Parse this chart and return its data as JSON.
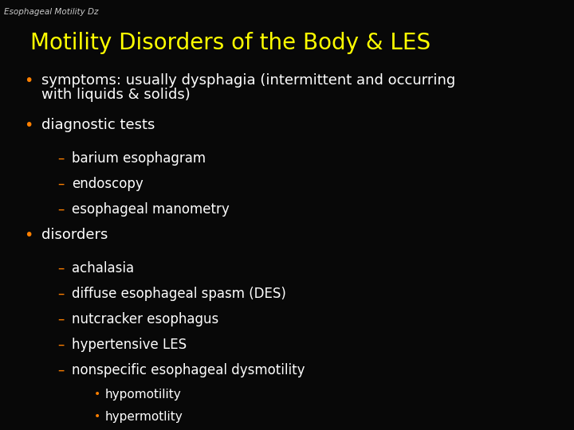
{
  "background_color": "#080808",
  "watermark": "Esophageal Motility Dz",
  "watermark_color": "#cccccc",
  "watermark_fontsize": 7.5,
  "title": "Motility Disorders of the Body & LES",
  "title_color": "#ffff00",
  "title_fontsize": 20,
  "title_fontweight": "normal",
  "bullet_color": "#ff8000",
  "dash_color": "#ff8000",
  "sub_bullet_color": "#ff8000",
  "text_color": "#ffffff",
  "body_fontsize": 13,
  "sub_fontsize": 12,
  "subsub_fontsize": 11,
  "lines": [
    {
      "type": "bullet",
      "text": "symptoms: usually dysphagia (intermittent and occurring",
      "text2": "with liquids & solids)"
    },
    {
      "type": "bullet",
      "text": "diagnostic tests",
      "text2": null
    },
    {
      "type": "dash",
      "text": "barium esophagram",
      "text2": null
    },
    {
      "type": "dash",
      "text": "endoscopy",
      "text2": null
    },
    {
      "type": "dash",
      "text": "esophageal manometry",
      "text2": null
    },
    {
      "type": "bullet",
      "text": "disorders",
      "text2": null
    },
    {
      "type": "dash",
      "text": "achalasia",
      "text2": null
    },
    {
      "type": "dash",
      "text": "diffuse esophageal spasm (DES)",
      "text2": null
    },
    {
      "type": "dash",
      "text": "nutcracker esophagus",
      "text2": null
    },
    {
      "type": "dash",
      "text": "hypertensive LES",
      "text2": null
    },
    {
      "type": "dash",
      "text": "nonspecific esophageal dysmotility",
      "text2": null
    },
    {
      "type": "subdash",
      "text": "hypomotility",
      "text2": null
    },
    {
      "type": "subdash",
      "text": "hypermotlity",
      "text2": null
    }
  ]
}
